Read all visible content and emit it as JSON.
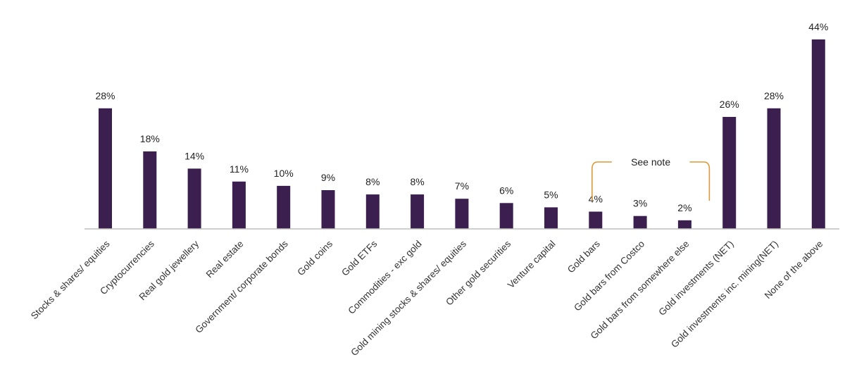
{
  "chart_data": {
    "type": "bar",
    "categories": [
      "Stocks & shares/ equities",
      "Cryptocurrencies",
      "Real gold jewellery",
      "Real estate",
      "Government/ corporate bonds",
      "Gold coins",
      "Gold ETFs",
      "Commodities - exc gold",
      "Gold mining stocks & shares/ equities",
      "Other gold securities",
      "Venture capital",
      "Gold bars",
      "Gold bars from Costco",
      "Gold bars from somewhere else",
      "Gold investments (NET)",
      "Gold investments inc. mining(NET)",
      "None of the above"
    ],
    "values": [
      28,
      18,
      14,
      11,
      10,
      9,
      8,
      8,
      7,
      6,
      5,
      4,
      3,
      2,
      26,
      28,
      44
    ],
    "value_labels": [
      "28%",
      "18%",
      "14%",
      "11%",
      "10%",
      "9%",
      "8%",
      "8%",
      "7%",
      "6%",
      "5%",
      "4%",
      "3%",
      "2%",
      "26%",
      "28%",
      "44%"
    ],
    "title": "",
    "xlabel": "",
    "ylabel": "",
    "ylim": [
      0,
      44
    ],
    "unit": "%",
    "grid": false,
    "annotation": {
      "text": "See note",
      "spans_categories": [
        "Gold bars",
        "Gold bars from somewhere else"
      ]
    }
  },
  "colors": {
    "bar": "#3a1f4f",
    "bracket": "#d89a3a",
    "axis": "#bfbfbf"
  }
}
